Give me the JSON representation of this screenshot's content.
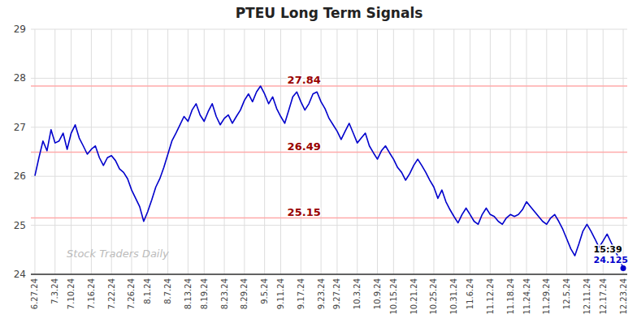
{
  "chart_data": {
    "type": "line",
    "title": "PTEU Long Term Signals",
    "color": "#0000cc",
    "grid": true,
    "ylim": [
      24,
      29
    ],
    "yticks": [
      24,
      25,
      26,
      27,
      28,
      29
    ],
    "categories": [
      "6.27.24",
      null,
      null,
      null,
      null,
      "7.3.24",
      null,
      null,
      null,
      "7.10.24",
      null,
      null,
      null,
      null,
      "7.16.24",
      null,
      null,
      null,
      null,
      "7.22.24",
      null,
      null,
      null,
      null,
      "7.26.24",
      null,
      null,
      null,
      "8.1.24",
      null,
      null,
      null,
      null,
      "8.7.24",
      null,
      null,
      null,
      null,
      "8.13.24",
      null,
      null,
      null,
      "8.19.24",
      null,
      null,
      null,
      null,
      "8.23.24",
      null,
      null,
      null,
      null,
      "8.29.24",
      null,
      null,
      null,
      null,
      "9.5.24",
      null,
      null,
      null,
      "9.11.24",
      null,
      null,
      null,
      null,
      "9.17.24",
      null,
      null,
      null,
      null,
      "9.23.24",
      null,
      null,
      null,
      "9.27.24",
      null,
      null,
      null,
      null,
      "10.3.24",
      null,
      null,
      null,
      null,
      "10.9.24",
      null,
      null,
      null,
      "10.15.24",
      null,
      null,
      null,
      null,
      "10.21.24",
      null,
      null,
      null,
      null,
      "10.25.24",
      null,
      null,
      null,
      null,
      "10.31.24",
      null,
      null,
      null,
      "11.6.24",
      null,
      null,
      null,
      null,
      "11.12.24",
      null,
      null,
      null,
      null,
      "11.18.24",
      null,
      null,
      null,
      "11.24.24",
      null,
      null,
      null,
      null,
      "11.29.24",
      null,
      null,
      null,
      null,
      "12.5.24",
      null,
      null,
      null,
      null,
      "12.11.24",
      null,
      null,
      null,
      "12.17.24",
      null,
      null,
      null,
      null,
      "12.23.24"
    ],
    "values": [
      26.01,
      26.38,
      26.72,
      26.52,
      26.95,
      26.68,
      26.72,
      26.88,
      26.55,
      26.88,
      27.05,
      26.78,
      26.62,
      26.45,
      26.55,
      26.62,
      26.38,
      26.22,
      26.38,
      26.42,
      26.32,
      26.15,
      26.08,
      25.95,
      25.72,
      25.55,
      25.38,
      25.08,
      25.28,
      25.52,
      25.78,
      25.95,
      26.18,
      26.45,
      26.72,
      26.88,
      27.05,
      27.22,
      27.12,
      27.35,
      27.48,
      27.25,
      27.12,
      27.32,
      27.48,
      27.22,
      27.05,
      27.18,
      27.25,
      27.08,
      27.22,
      27.35,
      27.55,
      27.68,
      27.52,
      27.72,
      27.84,
      27.68,
      27.48,
      27.62,
      27.38,
      27.22,
      27.08,
      27.35,
      27.62,
      27.72,
      27.52,
      27.35,
      27.48,
      27.68,
      27.72,
      27.52,
      27.38,
      27.18,
      27.05,
      26.92,
      26.75,
      26.92,
      27.08,
      26.88,
      26.68,
      26.78,
      26.88,
      26.62,
      26.48,
      26.35,
      26.52,
      26.62,
      26.48,
      26.35,
      26.18,
      26.08,
      25.92,
      26.05,
      26.22,
      26.35,
      26.22,
      26.08,
      25.92,
      25.78,
      25.55,
      25.72,
      25.48,
      25.32,
      25.18,
      25.05,
      25.22,
      25.35,
      25.22,
      25.08,
      25.02,
      25.22,
      25.35,
      25.22,
      25.18,
      25.08,
      25.02,
      25.15,
      25.22,
      25.18,
      25.22,
      25.32,
      25.48,
      25.38,
      25.28,
      25.18,
      25.08,
      25.02,
      25.15,
      25.22,
      25.08,
      24.92,
      24.72,
      24.52,
      24.38,
      24.62,
      24.88,
      25.02,
      24.88,
      24.72,
      24.55,
      24.68,
      24.82,
      24.65,
      24.48,
      24.32,
      24.125
    ],
    "hlines": [
      {
        "y": 27.84,
        "color": "#ffaaaa"
      },
      {
        "y": 26.49,
        "color": "#ffaaaa"
      },
      {
        "y": 25.15,
        "color": "#ffaaaa"
      }
    ],
    "annotations": [
      {
        "text": "27.84",
        "y": 27.84,
        "color": "#990000"
      },
      {
        "text": "26.49",
        "y": 26.49,
        "color": "#990000"
      },
      {
        "text": "25.15",
        "y": 25.15,
        "color": "#990000"
      }
    ],
    "last_point_labels": [
      {
        "text": "15:39",
        "color": "#000000"
      },
      {
        "text": "24.125",
        "color": "#0000cc"
      }
    ],
    "watermark": {
      "text": "Stock Traders Daily",
      "color": "#bbbbbb"
    }
  }
}
